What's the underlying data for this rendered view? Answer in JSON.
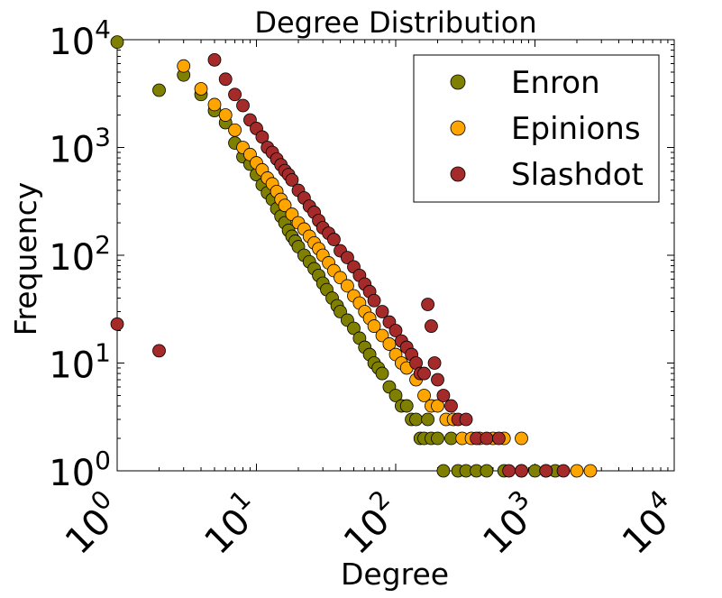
{
  "chart_data": {
    "type": "scatter",
    "title": "Degree Distribution",
    "xlabel": "Degree",
    "ylabel": "Frequency",
    "xscale": "log",
    "yscale": "log",
    "xlim": [
      1,
      10000
    ],
    "ylim": [
      1,
      10000
    ],
    "xticks": [
      {
        "base": "10",
        "exp": "0"
      },
      {
        "base": "10",
        "exp": "1"
      },
      {
        "base": "10",
        "exp": "2"
      },
      {
        "base": "10",
        "exp": "3"
      },
      {
        "base": "10",
        "exp": "4"
      }
    ],
    "yticks": [
      {
        "base": "10",
        "exp": "0"
      },
      {
        "base": "10",
        "exp": "1"
      },
      {
        "base": "10",
        "exp": "2"
      },
      {
        "base": "10",
        "exp": "3"
      },
      {
        "base": "10",
        "exp": "4"
      }
    ],
    "legend_position": "top-right",
    "series": [
      {
        "name": "Enron",
        "color": "#808000",
        "x": [
          1,
          2,
          3,
          4,
          5,
          6,
          7,
          8,
          9,
          10,
          11,
          12,
          13,
          14,
          15,
          16,
          17,
          18,
          19,
          20,
          22,
          24,
          26,
          28,
          30,
          32,
          35,
          38,
          40,
          45,
          50,
          55,
          60,
          65,
          70,
          75,
          80,
          90,
          100,
          110,
          120,
          130,
          140,
          150,
          160,
          170,
          180,
          200,
          220,
          250,
          280,
          320,
          380,
          450,
          600,
          800,
          1000,
          1400
        ],
        "y": [
          9500,
          3400,
          4700,
          3100,
          2200,
          1700,
          1100,
          820,
          700,
          560,
          450,
          380,
          330,
          270,
          230,
          200,
          170,
          150,
          135,
          120,
          100,
          87,
          75,
          65,
          55,
          48,
          40,
          34,
          30,
          25,
          21,
          17,
          14,
          12,
          10,
          9,
          8,
          6,
          5,
          4,
          4,
          3,
          3,
          2,
          2,
          3,
          2,
          2,
          1,
          2,
          1,
          1,
          1,
          1,
          1,
          1,
          1,
          1
        ]
      },
      {
        "name": "Epinions",
        "color": "#ffa500",
        "x": [
          3,
          4,
          5,
          6,
          7,
          8,
          9,
          10,
          11,
          12,
          13,
          14,
          15,
          16,
          18,
          20,
          22,
          24,
          26,
          28,
          30,
          33,
          36,
          40,
          45,
          50,
          55,
          60,
          65,
          70,
          80,
          90,
          100,
          110,
          120,
          140,
          160,
          180,
          200,
          230,
          260,
          300,
          350,
          400,
          500,
          600,
          800,
          1200,
          2000,
          2500
        ],
        "y": [
          5700,
          3500,
          2500,
          2000,
          1450,
          1000,
          860,
          720,
          620,
          520,
          460,
          390,
          330,
          290,
          240,
          200,
          175,
          150,
          130,
          115,
          100,
          85,
          72,
          62,
          52,
          42,
          36,
          30,
          26,
          22,
          18,
          15,
          12,
          10,
          9,
          7,
          5,
          4,
          4,
          3,
          3,
          2,
          2,
          2,
          2,
          2,
          2,
          1,
          1,
          1
        ]
      },
      {
        "name": "Slashdot",
        "color": "#a52a2a",
        "x": [
          1,
          2,
          5,
          6,
          7,
          8,
          9,
          10,
          11,
          12,
          13,
          14,
          15,
          16,
          17,
          18,
          20,
          22,
          24,
          26,
          28,
          30,
          33,
          36,
          40,
          45,
          50,
          55,
          60,
          65,
          70,
          80,
          90,
          100,
          110,
          120,
          130,
          140,
          150,
          160,
          170,
          180,
          190,
          200,
          220,
          250,
          280,
          320,
          380,
          450,
          550,
          650,
          800,
          1200,
          1600
        ],
        "y": [
          23,
          13,
          6500,
          4300,
          3100,
          2450,
          1800,
          1500,
          1250,
          1000,
          900,
          780,
          690,
          610,
          560,
          500,
          400,
          340,
          285,
          250,
          210,
          180,
          160,
          140,
          110,
          95,
          78,
          65,
          54,
          46,
          38,
          30,
          24,
          20,
          16,
          14,
          12,
          10,
          8,
          8,
          35,
          22,
          10,
          7,
          5,
          4,
          3,
          3,
          2,
          2,
          2,
          1,
          1,
          1,
          1
        ]
      }
    ]
  }
}
